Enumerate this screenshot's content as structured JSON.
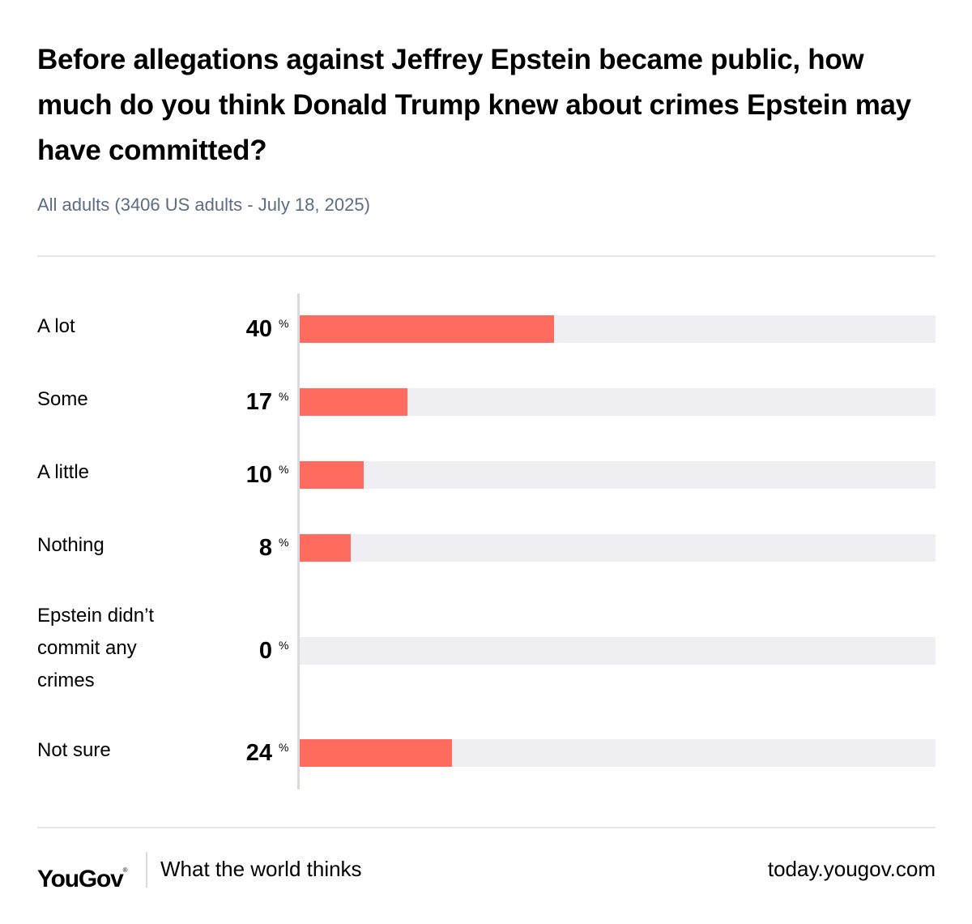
{
  "chart_data": {
    "type": "bar",
    "orientation": "horizontal",
    "title": "Before allegations against Jeffrey Epstein became public, how much do you think Donald Trump knew about crimes Epstein may have committed?",
    "subtitle": "All adults (3406 US adults - July 18, 2025)",
    "categories": [
      "A lot",
      "Some",
      "A little",
      "Nothing",
      "Epstein didn’t commit any crimes",
      "Not sure"
    ],
    "values": [
      40,
      17,
      10,
      8,
      0,
      24
    ],
    "unit": "%",
    "xlim": [
      0,
      100
    ],
    "bar_color": "#ff6b5e",
    "track_color": "#efeff3"
  },
  "footer": {
    "brand": "YouGov",
    "registered_mark": "®",
    "tagline": "What the world thinks",
    "url": "today.yougov.com"
  }
}
